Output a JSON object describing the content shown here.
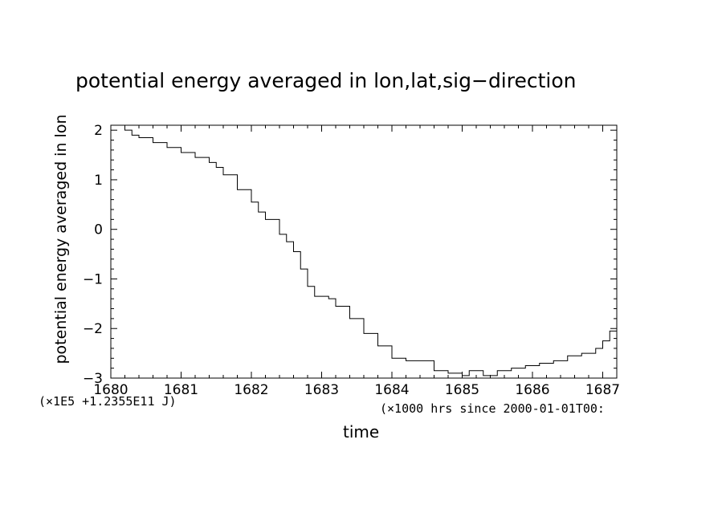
{
  "chart_data": {
    "type": "line",
    "title": "potential energy averaged in lon,lat,sig−direction",
    "xlabel": "time",
    "ylabel": "potential energy averaged in lon",
    "x_multiplier": "(×1000 hrs  since 2000-01-01T00:",
    "y_multiplier": "(×1E5 +1.2355E11 J)",
    "xlim": [
      1680,
      1687.2
    ],
    "ylim": [
      -3,
      2.1
    ],
    "x_ticks": [
      "1680",
      "1681",
      "1682",
      "1683",
      "1684",
      "1685",
      "1686",
      "1687"
    ],
    "y_ticks": [
      "2",
      "1",
      "0",
      "−1",
      "−2",
      "−3"
    ],
    "grid": false,
    "line_style": "step",
    "series": [
      {
        "color": "#000000",
        "x": [
          1680.0,
          1680.1,
          1680.2,
          1680.3,
          1680.4,
          1680.6,
          1680.8,
          1681.0,
          1681.2,
          1681.4,
          1681.5,
          1681.6,
          1681.8,
          1682.0,
          1682.1,
          1682.2,
          1682.4,
          1682.5,
          1682.6,
          1682.7,
          1682.8,
          1682.9,
          1683.1,
          1683.2,
          1683.4,
          1683.6,
          1683.8,
          1684.0,
          1684.2,
          1684.4,
          1684.6,
          1684.8,
          1685.0,
          1685.1,
          1685.3,
          1685.5,
          1685.7,
          1685.9,
          1686.1,
          1686.3,
          1686.5,
          1686.7,
          1686.9,
          1687.0,
          1687.1,
          1687.2
        ],
        "y": [
          2.1,
          2.1,
          2.0,
          1.9,
          1.85,
          1.75,
          1.65,
          1.55,
          1.45,
          1.35,
          1.25,
          1.1,
          0.8,
          0.55,
          0.35,
          0.2,
          -0.1,
          -0.25,
          -0.45,
          -0.8,
          -1.15,
          -1.35,
          -1.4,
          -1.55,
          -1.8,
          -2.1,
          -2.35,
          -2.6,
          -2.65,
          -2.65,
          -2.85,
          -2.9,
          -2.95,
          -2.85,
          -2.95,
          -2.85,
          -2.8,
          -2.75,
          -2.7,
          -2.65,
          -2.55,
          -2.5,
          -2.4,
          -2.25,
          -2.05,
          -1.8
        ]
      }
    ]
  }
}
